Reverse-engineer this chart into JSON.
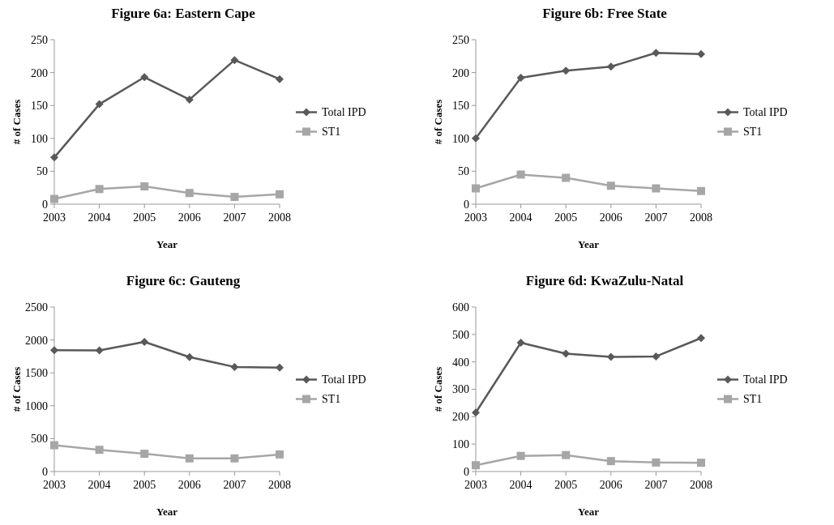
{
  "chart_data": [
    {
      "type": "line",
      "title": "Figure 6a: Eastern Cape",
      "xlabel": "Year",
      "ylabel": "# of Cases",
      "categories": [
        "2003",
        "2004",
        "2005",
        "2006",
        "2007",
        "2008"
      ],
      "ylim": [
        0,
        250
      ],
      "yticks": [
        0,
        50,
        100,
        150,
        200,
        250
      ],
      "grid": false,
      "legend": "right",
      "series": [
        {
          "name": "Total IPD",
          "color": "#595959",
          "marker": "diamond",
          "values": [
            71,
            152,
            193,
            159,
            219,
            190
          ]
        },
        {
          "name": "ST1",
          "color": "#a6a6a6",
          "marker": "square",
          "values": [
            8,
            23,
            27,
            17,
            11,
            15
          ]
        }
      ]
    },
    {
      "type": "line",
      "title": "Figure 6b: Free State",
      "xlabel": "Year",
      "ylabel": "# of Cases",
      "categories": [
        "2003",
        "2004",
        "2005",
        "2006",
        "2007",
        "2008"
      ],
      "ylim": [
        0,
        250
      ],
      "yticks": [
        0,
        50,
        100,
        150,
        200,
        250
      ],
      "grid": false,
      "legend": "right",
      "series": [
        {
          "name": "Total IPD",
          "color": "#595959",
          "marker": "diamond",
          "values": [
            100,
            192,
            203,
            209,
            230,
            228
          ]
        },
        {
          "name": "ST1",
          "color": "#a6a6a6",
          "marker": "square",
          "values": [
            24,
            45,
            40,
            28,
            24,
            20
          ]
        }
      ]
    },
    {
      "type": "line",
      "title": "Figure 6c: Gauteng",
      "xlabel": "Year",
      "ylabel": "# of Cases",
      "categories": [
        "2003",
        "2004",
        "2005",
        "2006",
        "2007",
        "2008"
      ],
      "ylim": [
        0,
        2500
      ],
      "yticks": [
        0,
        500,
        1000,
        1500,
        2000,
        2500
      ],
      "grid": false,
      "legend": "right",
      "series": [
        {
          "name": "Total IPD",
          "color": "#595959",
          "marker": "diamond",
          "values": [
            1845,
            1840,
            1970,
            1740,
            1590,
            1580
          ]
        },
        {
          "name": "ST1",
          "color": "#a6a6a6",
          "marker": "square",
          "values": [
            400,
            330,
            270,
            200,
            200,
            260
          ]
        }
      ]
    },
    {
      "type": "line",
      "title": "Figure 6d: KwaZulu-Natal",
      "xlabel": "Year",
      "ylabel": "# of Cases",
      "categories": [
        "2003",
        "2004",
        "2005",
        "2006",
        "2007",
        "2008"
      ],
      "ylim": [
        0,
        600
      ],
      "yticks": [
        0,
        100,
        200,
        300,
        400,
        500,
        600
      ],
      "grid": false,
      "legend": "right",
      "series": [
        {
          "name": "Total IPD",
          "color": "#595959",
          "marker": "diamond",
          "values": [
            215,
            470,
            430,
            418,
            420,
            487
          ]
        },
        {
          "name": "ST1",
          "color": "#a6a6a6",
          "marker": "square",
          "values": [
            23,
            57,
            60,
            38,
            33,
            32
          ]
        }
      ]
    }
  ]
}
